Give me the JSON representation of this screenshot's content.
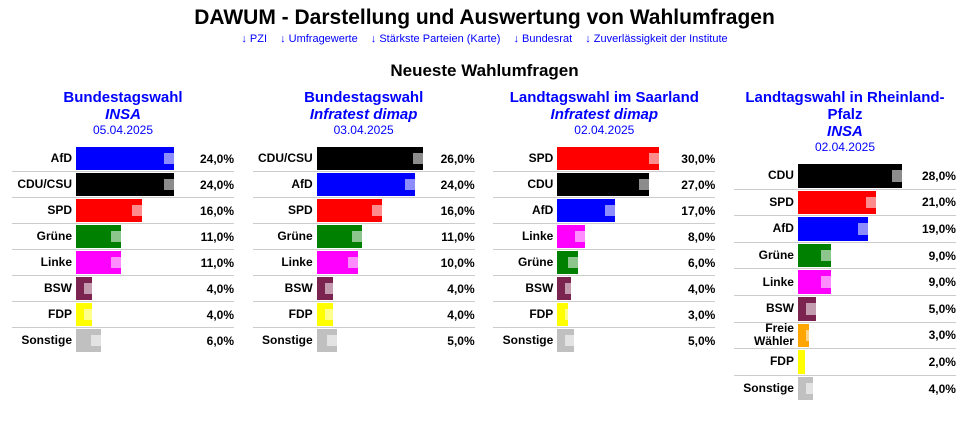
{
  "title": "DAWUM - Darstellung und Auswertung von Wahlumfragen",
  "nav": [
    "↓ PZI",
    "↓ Umfragewerte",
    "↓ Stärkste Parteien (Karte)",
    "↓ Bundesrat",
    "↓ Zuverlässigkeit der Institute"
  ],
  "subtitle": "Neueste Wahlumfragen",
  "colors": {
    "AfD": "#0000ff",
    "CDU/CSU": "#000000",
    "CDU": "#000000",
    "SPD": "#ff0000",
    "Grüne": "#008000",
    "Linke": "#ff00ff",
    "BSW": "#7b2450",
    "FDP": "#ffff00",
    "Sonstige": "#c0c0c0",
    "Freie Wähler": "#ffa500"
  },
  "polls": [
    {
      "title": "Bundestagswahl",
      "institute": "INSA",
      "date": "05.04.2025",
      "rows": [
        [
          "AfD",
          24,
          "24,0%"
        ],
        [
          "CDU/CSU",
          24,
          "24,0%"
        ],
        [
          "SPD",
          16,
          "16,0%"
        ],
        [
          "Grüne",
          11,
          "11,0%"
        ],
        [
          "Linke",
          11,
          "11,0%"
        ],
        [
          "BSW",
          4,
          "4,0%"
        ],
        [
          "FDP",
          4,
          "4,0%"
        ],
        [
          "Sonstige",
          6,
          "6,0%"
        ]
      ]
    },
    {
      "title": "Bundestagswahl",
      "institute": "Infratest dimap",
      "date": "03.04.2025",
      "rows": [
        [
          "CDU/CSU",
          26,
          "26,0%"
        ],
        [
          "AfD",
          24,
          "24,0%"
        ],
        [
          "SPD",
          16,
          "16,0%"
        ],
        [
          "Grüne",
          11,
          "11,0%"
        ],
        [
          "Linke",
          10,
          "10,0%"
        ],
        [
          "BSW",
          4,
          "4,0%"
        ],
        [
          "FDP",
          4,
          "4,0%"
        ],
        [
          "Sonstige",
          5,
          "5,0%"
        ]
      ]
    },
    {
      "title": "Landtagswahl im Saarland",
      "institute": "Infratest dimap",
      "date": "02.04.2025",
      "rows": [
        [
          "SPD",
          30,
          "30,0%"
        ],
        [
          "CDU",
          27,
          "27,0%"
        ],
        [
          "AfD",
          17,
          "17,0%"
        ],
        [
          "Linke",
          8,
          "8,0%"
        ],
        [
          "Grüne",
          6,
          "6,0%"
        ],
        [
          "BSW",
          4,
          "4,0%"
        ],
        [
          "FDP",
          3,
          "3,0%"
        ],
        [
          "Sonstige",
          5,
          "5,0%"
        ]
      ]
    },
    {
      "title": "Landtagswahl in Rheinland-Pfalz",
      "institute": "INSA",
      "date": "02.04.2025",
      "rows": [
        [
          "CDU",
          28,
          "28,0%"
        ],
        [
          "SPD",
          21,
          "21,0%"
        ],
        [
          "AfD",
          19,
          "19,0%"
        ],
        [
          "Grüne",
          9,
          "9,0%"
        ],
        [
          "Linke",
          9,
          "9,0%"
        ],
        [
          "BSW",
          5,
          "5,0%"
        ],
        [
          "Freie Wähler",
          3,
          "3,0%"
        ],
        [
          "FDP",
          2,
          "2,0%"
        ],
        [
          "Sonstige",
          4,
          "4,0%"
        ]
      ]
    }
  ]
}
